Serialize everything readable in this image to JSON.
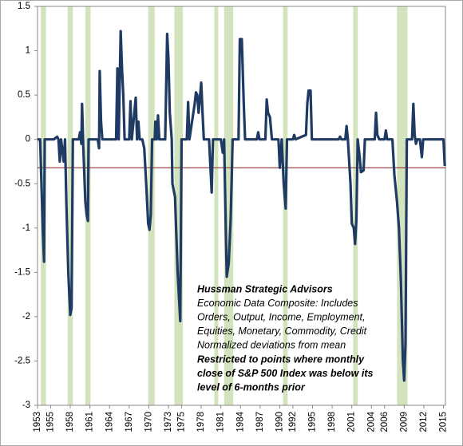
{
  "chart_data": {
    "type": "line",
    "color": "#1f3b63",
    "x": [
      1953.0,
      1953.4,
      1953.6,
      1953.8,
      1954.0,
      1954.1,
      1955.5,
      1956.0,
      1956.2,
      1956.4,
      1956.6,
      1957.0,
      1957.2,
      1957.4,
      1957.7,
      1958.0,
      1958.2,
      1958.4,
      1959.3,
      1959.5,
      1959.7,
      1959.8,
      1960.0,
      1960.3,
      1960.5,
      1960.7,
      1960.8,
      1962.2,
      1962.4,
      1962.5,
      1962.7,
      1962.9,
      1965.0,
      1965.2,
      1965.4,
      1965.7,
      1965.9,
      1966.1,
      1966.3,
      1967.0,
      1967.2,
      1967.4,
      1968.0,
      1968.2,
      1968.4,
      1968.6,
      1969.0,
      1969.3,
      1969.6,
      1969.9,
      1970.1,
      1970.3,
      1970.5,
      1970.9,
      1971.0,
      1971.2,
      1971.4,
      1971.6,
      1972.5,
      1972.8,
      1973.0,
      1973.2,
      1973.5,
      1973.6,
      1974.0,
      1974.4,
      1974.8,
      1975.0,
      1975.8,
      1976.0,
      1976.2,
      1977.0,
      1977.2,
      1977.4,
      1977.6,
      1978.0,
      1978.2,
      1978.4,
      1979.2,
      1979.4,
      1979.6,
      1979.8,
      1981.0,
      1981.3,
      1981.5,
      1981.7,
      1981.9,
      1982.2,
      1982.5,
      1982.8,
      1983.7,
      1983.9,
      1984.2,
      1984.5,
      1984.7,
      1986.5,
      1986.7,
      1986.9,
      1987.8,
      1988.0,
      1988.2,
      1988.5,
      1988.8,
      1989.8,
      1990.0,
      1990.3,
      1990.6,
      1990.9,
      1991.1,
      1992.0,
      1992.2,
      1992.4,
      1994.0,
      1994.2,
      1994.4,
      1994.7,
      1994.9,
      1999.0,
      1999.2,
      1999.4,
      2000.0,
      2000.2,
      2000.4,
      2000.8,
      2001.0,
      2001.3,
      2001.5,
      2001.7,
      2001.9,
      2002.2,
      2002.4,
      2002.8,
      2003.0,
      2004.5,
      2004.7,
      2004.9,
      2005.2,
      2006.0,
      2006.2,
      2006.4,
      2007.2,
      2007.5,
      2007.9,
      2008.2,
      2008.5,
      2008.8,
      2009.0,
      2009.2,
      2009.4,
      2010.2,
      2010.4,
      2010.6,
      2010.8,
      2011.0,
      2011.4,
      2011.7,
      2011.9,
      2015.0,
      2015.2
    ],
    "values": [
      0,
      0,
      -0.5,
      -1.0,
      -1.38,
      0,
      0,
      0.03,
      0,
      -0.25,
      0,
      -0.25,
      0,
      -0.7,
      -1.5,
      -1.98,
      -1.9,
      0,
      0,
      0.08,
      -0.05,
      0.4,
      -0.1,
      -0.7,
      -0.85,
      -0.92,
      0,
      0,
      -0.1,
      0.77,
      0.2,
      0,
      0,
      0.8,
      0,
      1.22,
      0.8,
      0.5,
      0,
      0,
      0.43,
      0,
      0.47,
      0,
      0.2,
      0,
      0,
      -0.1,
      -0.5,
      -0.95,
      -1.02,
      -0.85,
      0,
      0,
      0.2,
      0,
      0.27,
      0,
      0,
      1.19,
      0.9,
      0.3,
      0,
      -0.5,
      -0.65,
      -1.5,
      -2.05,
      0,
      0,
      0.42,
      0,
      0.4,
      0.53,
      0.5,
      0.3,
      0.64,
      0.3,
      0,
      0,
      -0.3,
      -0.6,
      0,
      0,
      -0.15,
      0,
      -0.8,
      -1.55,
      -1.4,
      -0.9,
      0,
      0,
      1.13,
      1.13,
      0.4,
      0,
      0,
      0.08,
      0,
      0,
      0.45,
      0.3,
      0.25,
      0,
      0,
      -0.32,
      0,
      -0.5,
      -0.78,
      0,
      0,
      0.05,
      0,
      0.05,
      0.4,
      0.55,
      0.55,
      0,
      0,
      0.03,
      0,
      0,
      0.15,
      0,
      -0.5,
      -0.95,
      -1.0,
      -1.18,
      -0.9,
      0,
      -0.2,
      -0.37,
      -0.35,
      0,
      0,
      0.3,
      0.05,
      0,
      0,
      0.1,
      0,
      0,
      -0.4,
      -0.7,
      -1.0,
      -1.6,
      -2.5,
      -2.72,
      -2.3,
      0,
      0,
      0.4,
      0.05,
      -0.05,
      0,
      0,
      -0.2,
      0,
      0,
      -0.3
    ],
    "shaded_ranges": [
      [
        1953.5,
        1954.3
      ],
      [
        1957.6,
        1958.4
      ],
      [
        1960.3,
        1961.1
      ],
      [
        1969.9,
        1970.9
      ],
      [
        1973.9,
        1975.2
      ],
      [
        1980.0,
        1980.6
      ],
      [
        1981.5,
        1982.9
      ],
      [
        1990.5,
        1991.2
      ],
      [
        2001.2,
        2001.9
      ],
      [
        2007.9,
        2009.5
      ]
    ],
    "shade_color": "#d3e3bd",
    "reference_line": {
      "value": -0.32,
      "color": "#8b1a1a"
    },
    "xlim": [
      1953,
      2015.3
    ],
    "xticks": [
      1953,
      1955,
      1958,
      1961,
      1964,
      1967,
      1970,
      1973,
      1975,
      1978,
      1981,
      1984,
      1987,
      1990,
      1992,
      1995,
      1998,
      2001,
      2004,
      2006,
      2009,
      2012,
      2015
    ],
    "ylim": [
      -3,
      1.5
    ],
    "yticks": [
      -3,
      -2.5,
      -2,
      -1.5,
      -1,
      -0.5,
      0,
      0.5,
      1,
      1.5
    ],
    "annotation_title": "Hussman Strategic Advisors",
    "annotation": [
      "Economic Data Composite: Includes",
      "Orders, Output, Income, Employment,",
      "Equities, Monetary, Commodity, Credit",
      "Normalized deviations from mean"
    ],
    "annotation_note": [
      "Restricted to points where monthly",
      "close of S&P 500 Index was below its",
      "level of 6-months prior"
    ]
  }
}
